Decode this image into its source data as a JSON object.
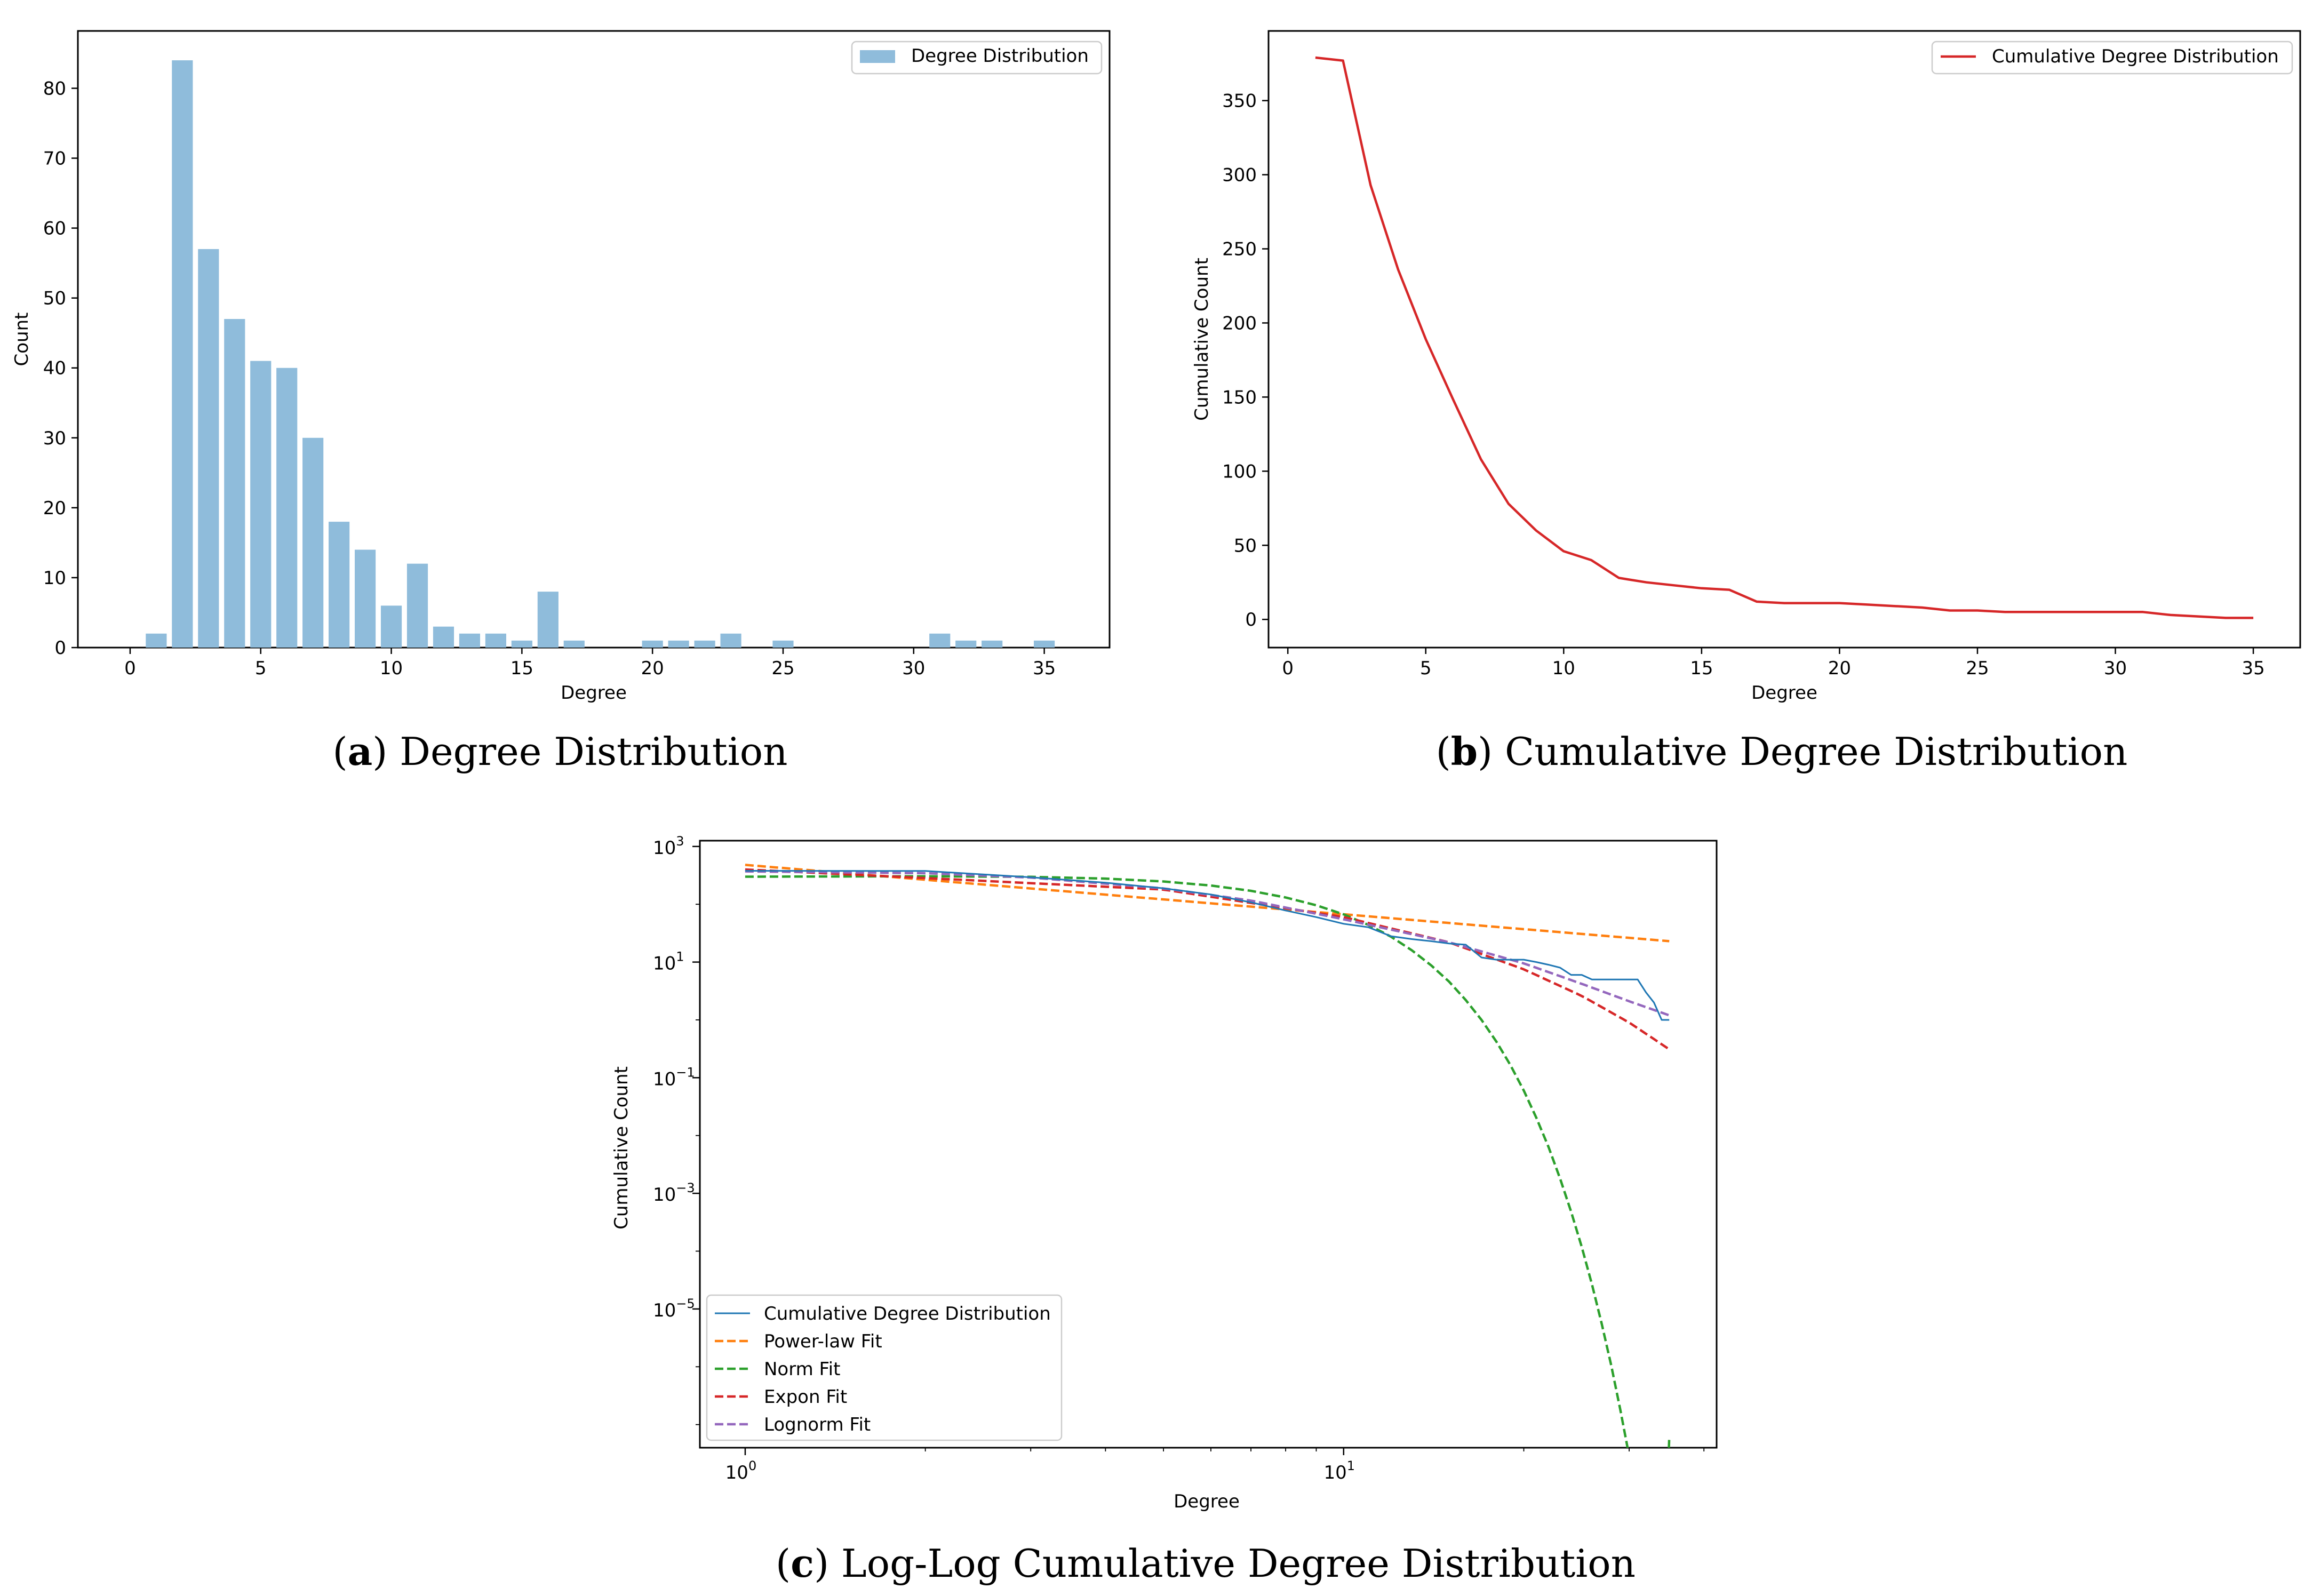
{
  "chart_data": [
    {
      "type": "bar",
      "caption": {
        "letter": "a",
        "text": "Degree Distribution"
      },
      "xlabel": "Degree",
      "ylabel": "Count",
      "xlim": [
        -2,
        37.5
      ],
      "ylim": [
        0,
        88.2
      ],
      "xticks": [
        0,
        5,
        10,
        15,
        20,
        25,
        30,
        35
      ],
      "yticks": [
        0,
        10,
        20,
        30,
        40,
        50,
        60,
        70,
        80
      ],
      "legend": {
        "position": "top-right",
        "label": "Degree Distribution"
      },
      "color": "#8fbcdb",
      "x": [
        1,
        2,
        3,
        4,
        5,
        6,
        7,
        8,
        9,
        10,
        11,
        12,
        13,
        14,
        15,
        16,
        17,
        20,
        21,
        22,
        23,
        25,
        31,
        32,
        33,
        35
      ],
      "values": [
        2,
        84,
        57,
        47,
        41,
        40,
        30,
        18,
        14,
        6,
        12,
        3,
        2,
        2,
        1,
        8,
        1,
        1,
        1,
        1,
        2,
        1,
        2,
        1,
        1,
        1
      ]
    },
    {
      "type": "line",
      "caption": {
        "letter": "b",
        "text": "Cumulative Degree Distribution"
      },
      "xlabel": "Degree",
      "ylabel": "Cumulative Count",
      "xlim": [
        -0.7,
        36.7
      ],
      "ylim": [
        -19,
        397
      ],
      "xticks": [
        0,
        5,
        10,
        15,
        20,
        25,
        30,
        35
      ],
      "yticks": [
        0,
        50,
        100,
        150,
        200,
        250,
        300,
        350
      ],
      "legend": {
        "position": "top-right",
        "label": "Cumulative Degree Distribution"
      },
      "color": "#d62728",
      "x": [
        1,
        2,
        3,
        4,
        5,
        6,
        7,
        8,
        9,
        10,
        11,
        12,
        13,
        14,
        15,
        16,
        17,
        18,
        19,
        20,
        21,
        22,
        23,
        24,
        25,
        26,
        27,
        28,
        29,
        30,
        31,
        32,
        33,
        34,
        35
      ],
      "values": [
        379,
        377,
        293,
        236,
        189,
        148,
        108,
        78,
        60,
        46,
        40,
        28,
        25,
        23,
        21,
        20,
        12,
        11,
        11,
        11,
        10,
        9,
        8,
        6,
        6,
        5,
        5,
        5,
        5,
        5,
        5,
        3,
        2,
        1,
        1
      ]
    },
    {
      "type": "line",
      "scale": "log-log",
      "caption": {
        "letter": "c",
        "text": "Log-Log Cumulative Degree Distribution"
      },
      "xlabel": "Degree",
      "ylabel": "Cumulative Count",
      "xlim": [
        0.84,
        42
      ],
      "ylim_exp": [
        -7.4,
        3.1
      ],
      "xticks": [
        {
          "base": "10",
          "exp": "0",
          "value": 1
        },
        {
          "base": "10",
          "exp": "1",
          "value": 10
        }
      ],
      "yticks": [
        {
          "base": "10",
          "exp": "3",
          "value": 3
        },
        {
          "base": "10",
          "exp": "1",
          "value": 1
        },
        {
          "base": "10",
          "exp": "−1",
          "value": -1
        },
        {
          "base": "10",
          "exp": "−3",
          "value": -3
        },
        {
          "base": "10",
          "exp": "−5",
          "value": -5
        }
      ],
      "legend": {
        "position": "lower-left"
      },
      "series": [
        {
          "name": "Cumulative Degree Distribution",
          "style": "solid",
          "color": "#1f77b4",
          "x": [
            1,
            2,
            3,
            4,
            5,
            6,
            7,
            8,
            9,
            10,
            11,
            12,
            13,
            14,
            15,
            16,
            17,
            18,
            19,
            20,
            21,
            22,
            23,
            24,
            25,
            26,
            27,
            28,
            29,
            30,
            31,
            32,
            33,
            34,
            35
          ],
          "values": [
            379,
            377,
            293,
            236,
            189,
            148,
            108,
            78,
            60,
            46,
            40,
            28,
            25,
            23,
            21,
            20,
            12,
            11,
            11,
            11,
            10,
            9,
            8,
            6,
            6,
            5,
            5,
            5,
            5,
            5,
            5,
            3,
            2,
            1,
            1
          ]
        },
        {
          "name": "Power-law Fit",
          "style": "dashed",
          "color": "#ff7f0e",
          "x": [
            1,
            35
          ],
          "values": [
            480,
            23
          ]
        },
        {
          "name": "Norm Fit",
          "style": "dashed",
          "color": "#2ca02c",
          "x": [
            1,
            2,
            3,
            4,
            5,
            6,
            7,
            8,
            9,
            10,
            11,
            12,
            13,
            14,
            15,
            16,
            17,
            18,
            19,
            20,
            21,
            22,
            23,
            24,
            25,
            26,
            27,
            28,
            29,
            30,
            31,
            32,
            33,
            34,
            35
          ],
          "values": [
            300,
            305,
            298,
            278,
            248,
            211,
            171,
            131,
            96,
            67,
            44,
            27.5,
            16,
            8.8,
            4.6,
            2.2,
            1.0,
            0.42,
            0.165,
            0.06,
            0.02,
            0.0063,
            0.0018,
            0.00048,
            0.000118,
            2.67e-05,
            5.5e-06,
            1.05e-06,
            1.8e-07,
            2.84e-08,
            4.1e-09,
            5.4e-10,
            6.5e-11,
            7.2e-12,
            6e-08
          ]
        },
        {
          "name": "Expon Fit",
          "style": "dashed",
          "color": "#d62728",
          "x": [
            1,
            5,
            10,
            15,
            20,
            25,
            30,
            35
          ],
          "values": [
            400,
            180,
            60,
            22,
            7.5,
            2.6,
            0.9,
            0.31
          ]
        },
        {
          "name": "Lognorm Fit",
          "style": "dashed",
          "color": "#9467bd",
          "x": [
            1,
            2,
            3,
            5,
            7,
            10,
            15,
            20,
            25,
            30,
            35
          ],
          "values": [
            370,
            345,
            290,
            188,
            116,
            55,
            22,
            9.5,
            4.2,
            2.1,
            1.2
          ]
        }
      ]
    }
  ]
}
